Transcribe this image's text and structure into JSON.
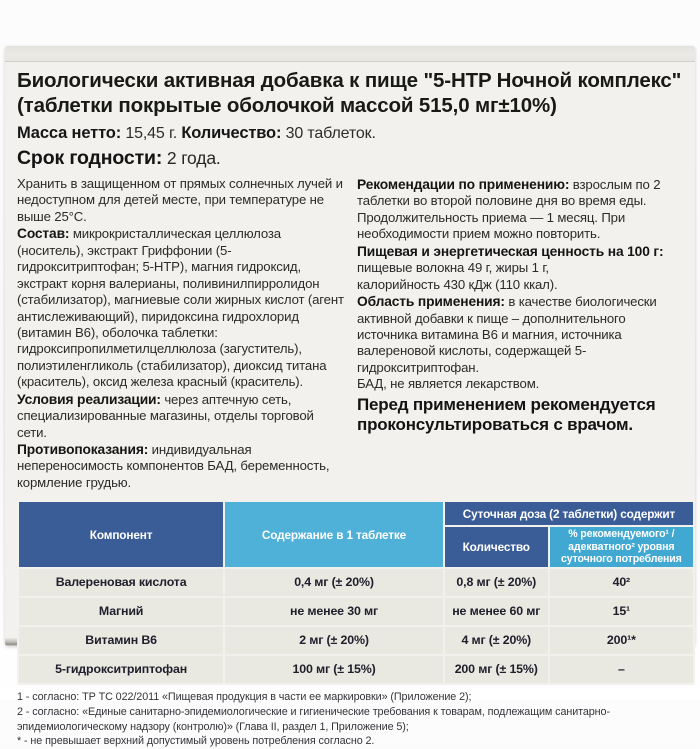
{
  "package": {
    "title_line1": "Биологически активная добавка к пище \"5-HTP Ночной комплекс\"",
    "title_line2": "(таблетки покрытые оболочкой массой 515,0 мг±10%)",
    "net_weight_label": "Масса нетто:",
    "net_weight_value": " 15,45 г. ",
    "quantity_label": "Количество:",
    "quantity_value": " 30 таблеток.",
    "shelf_life_label": "Срок годности:",
    "shelf_life_value": " 2 года.",
    "storage": "Хранить в защищенном от прямых солнечных лучей и недоступном для детей месте, при температуре не выше 25°С.",
    "composition_label": "Состав:",
    "composition_text": " микрокристаллическая целлюлоза (носитель), экстракт Гриффонии (5-гидрокситриптофан; 5-HTP), магния гидроксид, экстракт корня валерианы, поливинилпирролидон (стабилизатор), магниевые соли жирных кислот (агент антислеживающий), пиридоксина гидрохлорид (витамин B6), оболочка таблетки: гидроксипропилметилцеллюлоза (загуститель), полиэтиленгликоль (стабилизатор), диоксид титана (краситель), оксид железа красный (краситель).",
    "sales_label": "Условия реализации:",
    "sales_text": " через аптечную сеть, специализированные магазины, отделы торговой сети.",
    "contraindications_label": "Противопоказания:",
    "contraindications_text": " индивидуальная непереносимость компонентов БАД, беременность, кормление грудью.",
    "recommendations_label": "Рекомендации по применению:",
    "recommendations_text": " взрослым по 2 таблетки во второй половине дня во время еды. Продолжительность приема — 1 месяц. При необходимости прием можно повторить.",
    "nutrition_label": "Пищевая и энергетическая ценность на 100 г:",
    "nutrition_line1": "пищевые волокна 49 г, жиры 1 г,",
    "nutrition_line2": "калорийность 430 кДж (110 ккал).",
    "scope_label": "Область применения:",
    "scope_text": " в качестве биологически активной добавки к пище – дополнительного источника витамина B6 и магния, источника валереновой кислоты, содержащей 5-гидрокситриптофан.",
    "not_medicine": "БАД, не является лекарством.",
    "consult_line1": "Перед применением рекомендуется",
    "consult_line2": "проконсультироваться с врачом."
  },
  "table": {
    "col_component": "Компонент",
    "col_per_tablet": "Содержание в 1 таблетке",
    "col_daily_group": "Суточная доза (2 таблетки) содержит",
    "col_amount": "Количество",
    "col_percent": "% рекомендуемого¹ /адекватного² уровня суточного потребления",
    "rows": [
      {
        "component": "Валереновая кислота",
        "per_tablet": "0,4 мг (± 20%)",
        "daily_amount": "0,8 мг (± 20%)",
        "percent": "40²"
      },
      {
        "component": "Магний",
        "per_tablet": "не менее 30 мг",
        "daily_amount": "не менее 60 мг",
        "percent": "15¹"
      },
      {
        "component": "Витамин B6",
        "per_tablet": "2 мг (± 20%)",
        "daily_amount": "4 мг (± 20%)",
        "percent": "200¹*"
      },
      {
        "component": "5-гидрокситриптофан",
        "per_tablet": "100 мг (± 15%)",
        "daily_amount": "200 мг (± 15%)",
        "percent": "–"
      }
    ]
  },
  "footnotes": [
    "1 - согласно: ТР ТС 022/2011 «Пищевая продукция в части ее маркировки» (Приложение 2);",
    "2 - согласно: «Единые санитарно-эпидемиологические и гигиенические требования к товарам, подлежащим санитарно-эпидемиологическому надзору (контролю)» (Глава II, раздел 1, Приложение 5);",
    "* - не превышает верхний допустимый уровень потребления согласно 2."
  ],
  "colors": {
    "header_dark_blue": "#3b5d97",
    "header_light_blue": "#4fb0d8",
    "header_light_blue2": "#41a8d2",
    "row_background": "#e9e8e1",
    "box_background": "#f2f1ed"
  }
}
